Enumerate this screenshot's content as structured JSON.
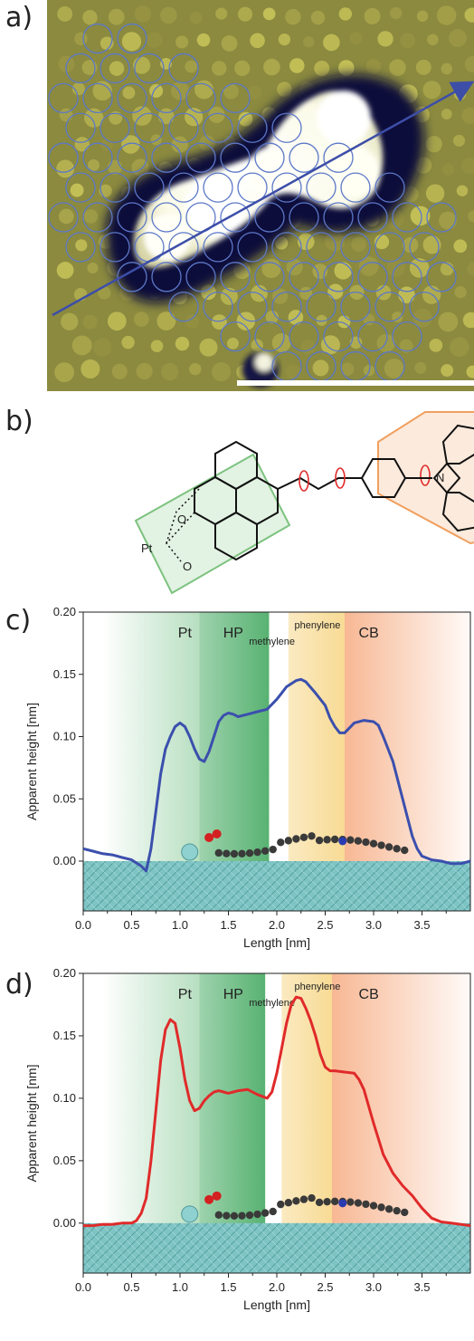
{
  "figure": {
    "panels": [
      {
        "label": "a)"
      },
      {
        "label": "b)"
      },
      {
        "label": "c)"
      },
      {
        "label": "d)"
      }
    ]
  },
  "structure_b": {
    "atom_labels": [
      "O",
      "O",
      "N",
      "Pt"
    ]
  },
  "colors": {
    "stm_bg": "#8b8a3f",
    "stm_halo": "#0b0e3a",
    "stm_bright": "#fdfdf2",
    "circle_outline": "#5c78c8",
    "arrow": "#3d4ea8",
    "scalebar": "#ffffff",
    "green_box": "#7dc27f",
    "orange_box": "#f0a060",
    "line_c": "#3b4fad",
    "line_d": "#e02a2a",
    "surface": "#7fc4c4"
  },
  "chart_data": [
    {
      "type": "line",
      "panel": "c)",
      "xlabel": "Length [nm]",
      "ylabel": "Apparent height [nm]",
      "xlim": [
        0.0,
        4.0
      ],
      "ylim": [
        -0.04,
        0.2
      ],
      "xticks": [
        "0.0",
        "0.5",
        "1.0",
        "1.5",
        "2.0",
        "2.5",
        "3.0",
        "3.5"
      ],
      "yticks": [
        "0.00",
        "0.05",
        "0.10",
        "0.15",
        "0.20"
      ],
      "regions": [
        {
          "label": "Pt",
          "x0": 0.2,
          "x1": 1.2,
          "color": "#7cc48c"
        },
        {
          "label": "HP",
          "x0": 1.2,
          "x1": 1.92,
          "color": "#4fae6a"
        },
        {
          "label": "phenylene",
          "x0": 2.12,
          "x1": 2.7,
          "color": "#f7d98f"
        },
        {
          "label": "CB",
          "x0": 2.7,
          "x1": 4.0,
          "color": "#f5a070"
        }
      ],
      "sublabel": "methylene",
      "series": [
        {
          "x": [
            0.0,
            0.1,
            0.2,
            0.3,
            0.4,
            0.5,
            0.6,
            0.65,
            0.7,
            0.75,
            0.8,
            0.85,
            0.9,
            0.95,
            1.0,
            1.05,
            1.1,
            1.15,
            1.2,
            1.25,
            1.3,
            1.35,
            1.4,
            1.45,
            1.5,
            1.55,
            1.6,
            1.7,
            1.8,
            1.9,
            2.0,
            2.05,
            2.1,
            2.2,
            2.25,
            2.3,
            2.4,
            2.5,
            2.55,
            2.6,
            2.65,
            2.7,
            2.75,
            2.8,
            2.9,
            3.0,
            3.05,
            3.1,
            3.2,
            3.3,
            3.4,
            3.45,
            3.5,
            3.6,
            3.7,
            3.8,
            3.9,
            4.0
          ],
          "y": [
            0.01,
            0.008,
            0.006,
            0.005,
            0.003,
            0.001,
            -0.004,
            -0.008,
            0.01,
            0.04,
            0.07,
            0.09,
            0.1,
            0.108,
            0.111,
            0.108,
            0.1,
            0.09,
            0.082,
            0.08,
            0.088,
            0.1,
            0.112,
            0.117,
            0.119,
            0.118,
            0.116,
            0.118,
            0.12,
            0.122,
            0.13,
            0.135,
            0.14,
            0.145,
            0.146,
            0.144,
            0.135,
            0.125,
            0.115,
            0.108,
            0.103,
            0.103,
            0.107,
            0.111,
            0.113,
            0.112,
            0.109,
            0.1,
            0.08,
            0.05,
            0.02,
            0.01,
            0.004,
            0.001,
            0.0,
            -0.002,
            -0.002,
            0.0
          ]
        }
      ]
    },
    {
      "type": "line",
      "panel": "d)",
      "xlabel": "Length [nm]",
      "ylabel": "Apparent height [nm]",
      "xlim": [
        0.0,
        4.0
      ],
      "ylim": [
        -0.04,
        0.2
      ],
      "xticks": [
        "0.0",
        "0.5",
        "1.0",
        "1.5",
        "2.0",
        "2.5",
        "3.0",
        "3.5"
      ],
      "yticks": [
        "0.00",
        "0.05",
        "0.10",
        "0.15",
        "0.20"
      ],
      "regions": [
        {
          "label": "Pt",
          "x0": 0.2,
          "x1": 1.2,
          "color": "#7cc48c"
        },
        {
          "label": "HP",
          "x0": 1.2,
          "x1": 1.88,
          "color": "#4fae6a"
        },
        {
          "label": "phenylene",
          "x0": 2.05,
          "x1": 2.57,
          "color": "#f7d98f"
        },
        {
          "label": "CB",
          "x0": 2.57,
          "x1": 4.0,
          "color": "#f5a070"
        }
      ],
      "sublabel": "methylene",
      "series": [
        {
          "x": [
            0.0,
            0.1,
            0.2,
            0.3,
            0.4,
            0.5,
            0.55,
            0.6,
            0.65,
            0.7,
            0.75,
            0.8,
            0.85,
            0.9,
            0.95,
            1.0,
            1.05,
            1.1,
            1.15,
            1.2,
            1.25,
            1.3,
            1.35,
            1.4,
            1.45,
            1.5,
            1.55,
            1.6,
            1.7,
            1.8,
            1.9,
            1.95,
            2.0,
            2.05,
            2.1,
            2.15,
            2.2,
            2.25,
            2.3,
            2.35,
            2.4,
            2.45,
            2.5,
            2.55,
            2.6,
            2.7,
            2.8,
            2.85,
            2.9,
            3.0,
            3.1,
            3.2,
            3.3,
            3.4,
            3.5,
            3.6,
            3.7,
            3.8,
            3.9,
            4.0
          ],
          "y": [
            -0.002,
            -0.002,
            -0.001,
            -0.001,
            0.0,
            0.0,
            0.002,
            0.008,
            0.02,
            0.05,
            0.09,
            0.13,
            0.155,
            0.163,
            0.16,
            0.14,
            0.115,
            0.098,
            0.09,
            0.092,
            0.098,
            0.102,
            0.105,
            0.106,
            0.105,
            0.104,
            0.105,
            0.106,
            0.107,
            0.103,
            0.1,
            0.105,
            0.12,
            0.14,
            0.16,
            0.175,
            0.181,
            0.18,
            0.172,
            0.162,
            0.15,
            0.135,
            0.125,
            0.122,
            0.122,
            0.121,
            0.12,
            0.115,
            0.107,
            0.08,
            0.055,
            0.04,
            0.03,
            0.022,
            0.012,
            0.004,
            0.001,
            0.0,
            -0.001,
            -0.002
          ]
        }
      ]
    }
  ]
}
